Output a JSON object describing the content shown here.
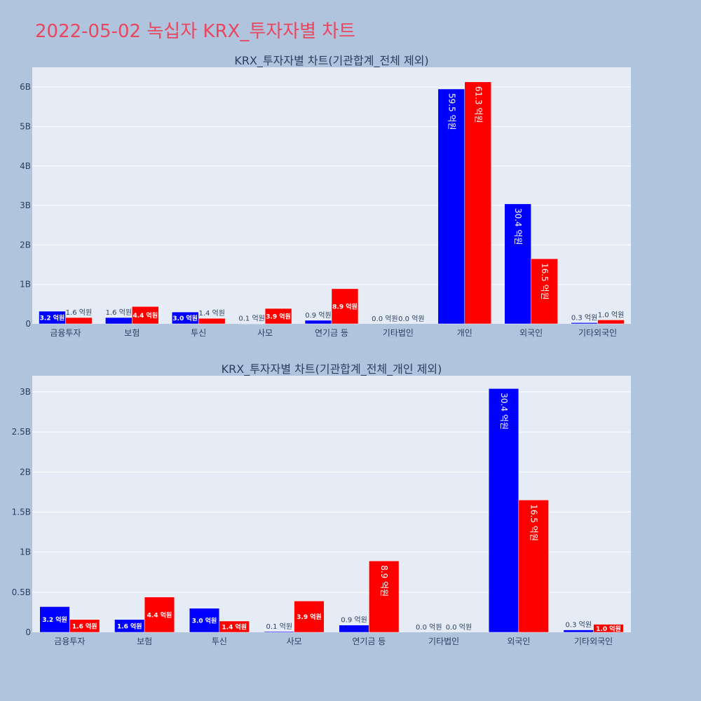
{
  "page_title": "2022-05-02 녹십자 KRX_투자자별 차트",
  "colors": {
    "background": "#b0c4de",
    "plot_background": "#e5ecf6",
    "series_1": "#0000ff",
    "series_2": "#ff0000",
    "title": "#e8475f"
  },
  "chart_data": [
    {
      "type": "bar",
      "title": "KRX_투자자별 차트(기관합계_전체 제외)",
      "xlabel": "",
      "ylabel": "",
      "categories": [
        "금융투자",
        "보험",
        "투신",
        "사모",
        "연기금 등",
        "기타법인",
        "개인",
        "외국인",
        "기타외국인"
      ],
      "y_tick_labels": [
        "0",
        "1B",
        "2B",
        "3B",
        "4B",
        "5B",
        "6B"
      ],
      "y_tick_values": [
        0,
        1000000000,
        2000000000,
        3000000000,
        4000000000,
        5000000000,
        6000000000
      ],
      "ylim": [
        0,
        6500000000
      ],
      "grid": true,
      "series": [
        {
          "values": [
            320000000,
            160000000,
            300000000,
            10000000,
            90000000,
            0,
            5950000000,
            3040000000,
            30000000
          ],
          "labels": [
            "3.2 억원",
            "1.6 억원",
            "3.0 억원",
            "0.1 억원",
            "0.9 억원",
            "0.0 억원",
            "59.5 억원",
            "30.4 억원",
            "0.3 억원"
          ]
        },
        {
          "values": [
            160000000,
            440000000,
            140000000,
            390000000,
            890000000,
            0,
            6130000000,
            1650000000,
            100000000
          ],
          "labels": [
            "1.6 억원",
            "4.4 억원",
            "1.4 억원",
            "3.9 억원",
            "8.9 억원",
            "0.0 억원",
            "61.3 억원",
            "16.5 억원",
            "1.0 억원"
          ]
        }
      ]
    },
    {
      "type": "bar",
      "title": "KRX_투자자별 차트(기관합계_전체_개인 제외)",
      "xlabel": "",
      "ylabel": "",
      "categories": [
        "금융투자",
        "보험",
        "투신",
        "사모",
        "연기금 등",
        "기타법인",
        "외국인",
        "기타외국인"
      ],
      "y_tick_labels": [
        "0",
        "0.5B",
        "1B",
        "1.5B",
        "2B",
        "2.5B",
        "3B"
      ],
      "y_tick_values": [
        0,
        500000000,
        1000000000,
        1500000000,
        2000000000,
        2500000000,
        3000000000
      ],
      "ylim": [
        0,
        3200000000
      ],
      "grid": true,
      "series": [
        {
          "values": [
            320000000,
            160000000,
            300000000,
            10000000,
            90000000,
            0,
            3040000000,
            30000000
          ],
          "labels": [
            "3.2 억원",
            "1.6 억원",
            "3.0 억원",
            "0.1 억원",
            "0.9 억원",
            "0.0 억원",
            "30.4 억원",
            "0.3 억원"
          ]
        },
        {
          "values": [
            160000000,
            440000000,
            140000000,
            390000000,
            890000000,
            0,
            1650000000,
            100000000
          ],
          "labels": [
            "1.6 억원",
            "4.4 억원",
            "1.4 억원",
            "3.9 억원",
            "8.9 억원",
            "0.0 억원",
            "16.5 억원",
            "1.0 억원"
          ]
        }
      ]
    }
  ]
}
